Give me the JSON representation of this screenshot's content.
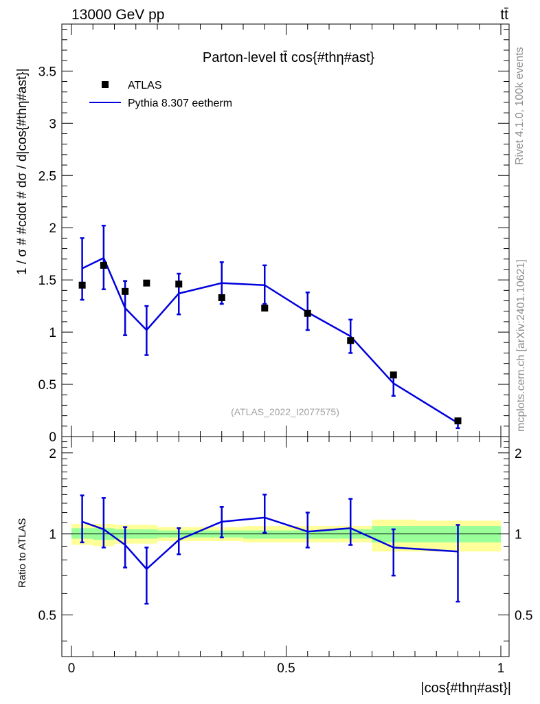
{
  "header": {
    "energy_label": "13000 GeV pp",
    "process_label": "tt̄"
  },
  "side_labels": {
    "rivet": "Rivet 4.1.0,  100k events",
    "mcplots": "mcplots.cern.ch [arXiv:2401.10621]"
  },
  "chart_data": {
    "type": "line",
    "title": "Parton-level tt̄ cos{#thη#ast}",
    "watermark": "(ATLAS_2022_I2077575)",
    "xlabel": "|cos{#thη#ast}|",
    "ylabel": "1 / σ # #cdot # dσ / d|cos{#thη#ast}|",
    "xlim": [
      0,
      1
    ],
    "ylim": [
      0,
      3.95
    ],
    "x_ticks": [
      "0",
      "0.5",
      "1"
    ],
    "y_ticks": [
      "0",
      "0.5",
      "1",
      "1.5",
      "2",
      "2.5",
      "3",
      "3.5"
    ],
    "bin_edges": [
      0.0,
      0.05,
      0.1,
      0.15,
      0.2,
      0.3,
      0.4,
      0.5,
      0.6,
      0.7,
      0.8,
      1.0
    ],
    "x": [
      0.025,
      0.075,
      0.125,
      0.175,
      0.25,
      0.35,
      0.45,
      0.55,
      0.65,
      0.75,
      0.9
    ],
    "legend": {
      "position": "top-left",
      "entries": [
        "ATLAS",
        "Pythia 8.307 eetherm"
      ]
    },
    "series": [
      {
        "name": "ATLAS",
        "style": "markers",
        "color": "#000000",
        "values": [
          1.45,
          1.64,
          1.39,
          1.47,
          1.46,
          1.33,
          1.23,
          1.18,
          0.92,
          0.59,
          0.15
        ]
      },
      {
        "name": "Pythia 8.307 eetherm",
        "style": "line",
        "color": "#0000dd",
        "values": [
          1.61,
          1.71,
          1.23,
          1.02,
          1.37,
          1.47,
          1.45,
          1.19,
          0.96,
          0.51,
          0.13
        ],
        "err_up": [
          1.9,
          2.02,
          1.49,
          1.25,
          1.56,
          1.67,
          1.64,
          1.38,
          1.12,
          0.61,
          0.17
        ],
        "err_down": [
          1.31,
          1.41,
          0.97,
          0.78,
          1.17,
          1.27,
          1.27,
          1.02,
          0.8,
          0.39,
          0.08
        ]
      }
    ],
    "ratio": {
      "ylabel": "Ratio to ATLAS",
      "ylim": [
        0.35,
        2.3
      ],
      "y_ticks": [
        "0.5",
        "1",
        "2"
      ],
      "values": [
        1.11,
        1.04,
        0.91,
        0.74,
        0.95,
        1.11,
        1.15,
        1.02,
        1.05,
        0.89,
        0.86
      ],
      "err_up": [
        1.39,
        1.36,
        1.06,
        0.89,
        1.05,
        1.26,
        1.4,
        1.2,
        1.35,
        1.04,
        1.08
      ],
      "err_down": [
        0.93,
        0.89,
        0.75,
        0.55,
        0.84,
        0.97,
        1.01,
        0.89,
        0.91,
        0.7,
        0.56
      ],
      "band_yellow": [
        [
          0.91,
          1.09
        ],
        [
          0.9,
          1.09
        ],
        [
          0.92,
          1.08
        ],
        [
          0.92,
          1.08
        ],
        [
          0.94,
          1.06
        ],
        [
          0.94,
          1.06
        ],
        [
          0.93,
          1.07
        ],
        [
          0.93,
          1.07
        ],
        [
          0.93,
          1.07
        ],
        [
          0.86,
          1.13
        ],
        [
          0.86,
          1.12
        ]
      ],
      "band_green": [
        [
          0.96,
          1.05
        ],
        [
          0.95,
          1.05
        ],
        [
          0.96,
          1.04
        ],
        [
          0.96,
          1.04
        ],
        [
          0.97,
          1.03
        ],
        [
          0.97,
          1.03
        ],
        [
          0.96,
          1.03
        ],
        [
          0.96,
          1.03
        ],
        [
          0.96,
          1.04
        ],
        [
          0.93,
          1.07
        ],
        [
          0.93,
          1.07
        ]
      ]
    }
  }
}
